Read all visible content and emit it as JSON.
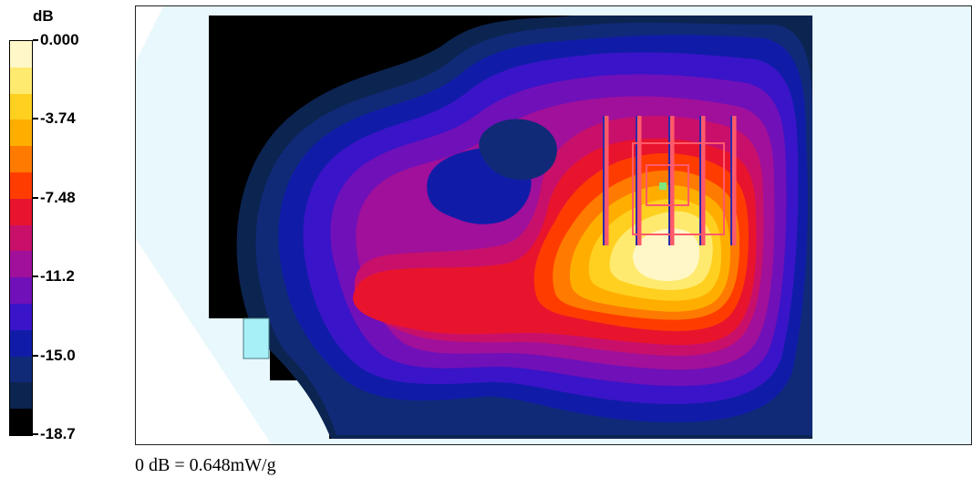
{
  "chart_data": {
    "type": "heatmap",
    "colorbar": {
      "unit_label": "dB",
      "ticks": [
        "0.000",
        "-3.74",
        "-7.48",
        "-11.2",
        "-15.0",
        "-18.7"
      ],
      "min": -18.7,
      "max": 0.0,
      "colors_top_to_bottom": [
        "#fff7c8",
        "#ffea70",
        "#ffd020",
        "#ffae00",
        "#ff7a00",
        "#ff3c00",
        "#e8142e",
        "#c8106a",
        "#a0109a",
        "#7010b8",
        "#3a14c8",
        "#101ca8",
        "#102a78",
        "#0c2450",
        "#000000"
      ]
    },
    "reference_note": "0 dB = 0.648mW/g",
    "colors": {
      "phantom_bg": "#e8f8fc",
      "outside_region": "#000000",
      "grid_lines": "#ff5a6a",
      "probe_point": "#7ee87e"
    }
  }
}
